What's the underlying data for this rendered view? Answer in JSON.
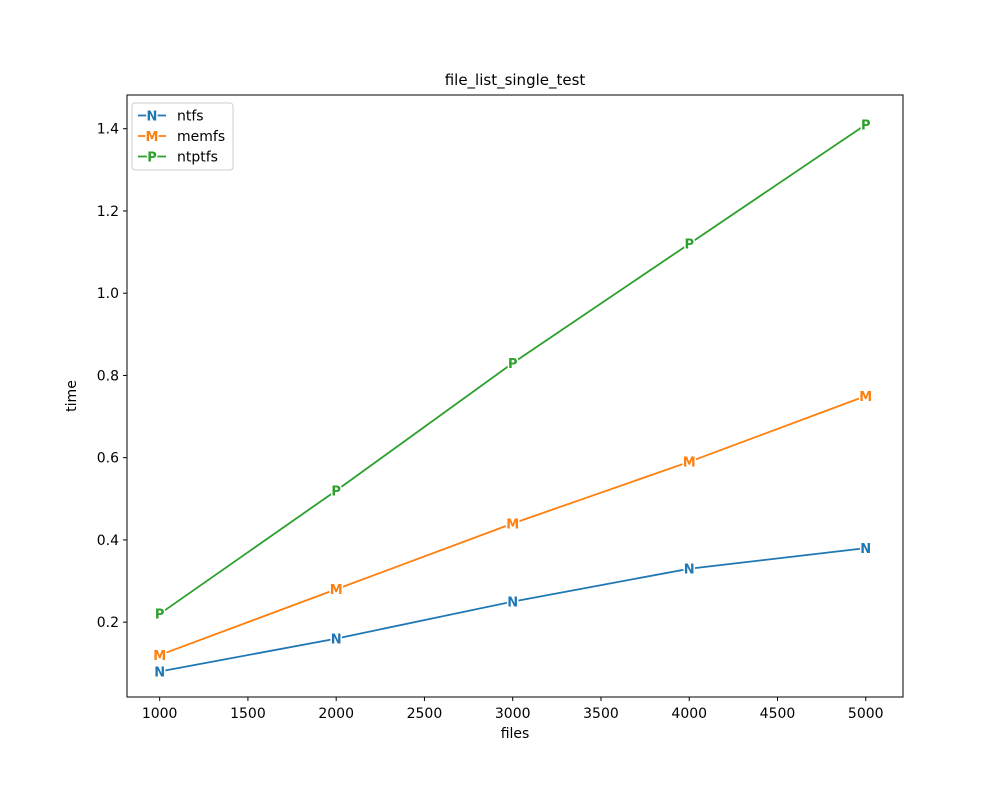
{
  "chart_data": {
    "type": "line",
    "title": "file_list_single_test",
    "xlabel": "files",
    "ylabel": "time",
    "x": [
      1000,
      2000,
      3000,
      4000,
      5000
    ],
    "series": [
      {
        "name": "ntfs",
        "marker": "N",
        "color": "#1f77b4",
        "values": [
          0.08,
          0.16,
          0.25,
          0.33,
          0.38
        ]
      },
      {
        "name": "memfs",
        "marker": "M",
        "color": "#ff7f0e",
        "values": [
          0.12,
          0.28,
          0.44,
          0.59,
          0.75
        ]
      },
      {
        "name": "ntptfs",
        "marker": "P",
        "color": "#2ca02c",
        "values": [
          0.22,
          0.52,
          0.83,
          1.12,
          1.41
        ]
      }
    ],
    "xticks": [
      1000,
      1500,
      2000,
      2500,
      3000,
      3500,
      4000,
      4500,
      5000
    ],
    "yticks": [
      0.2,
      0.4,
      0.6,
      0.8,
      1.0,
      1.2,
      1.4
    ],
    "xlim": [
      815,
      5211
    ],
    "ylim": [
      0.018,
      1.482
    ],
    "grid": false,
    "legend_position": "upper left",
    "axis_color": "#000000",
    "legend_border_color": "#cccccc",
    "background_color": "#ffffff"
  }
}
